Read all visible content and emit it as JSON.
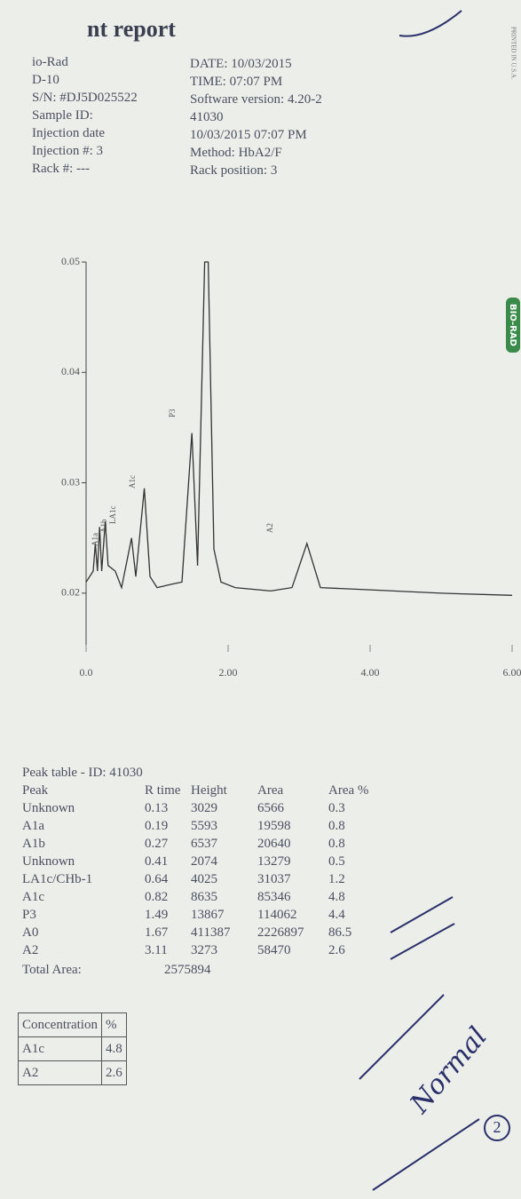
{
  "header": {
    "title": "nt report",
    "left": [
      "io-Rad",
      "D-10",
      "S/N: #DJ5D025522",
      "Sample ID:",
      "Injection date",
      "Injection #: 3",
      "Rack #: ---"
    ],
    "right": [
      "DATE: 10/03/2015",
      "TIME: 07:07 PM",
      "Software version: 4.20-2",
      "41030",
      "10/03/2015 07:07 PM",
      "Method: HbA2/F",
      "Rack position: 3"
    ]
  },
  "chart_data": {
    "type": "line",
    "color": "#333333",
    "x": [
      0.0,
      0.1,
      0.13,
      0.16,
      0.19,
      0.22,
      0.27,
      0.31,
      0.41,
      0.5,
      0.64,
      0.7,
      0.82,
      0.9,
      1.0,
      1.2,
      1.35,
      1.49,
      1.57,
      1.67,
      1.72,
      1.8,
      1.9,
      2.1,
      2.6,
      2.9,
      3.11,
      3.3,
      4.0,
      5.0,
      6.0
    ],
    "values": [
      0.021,
      0.022,
      0.0245,
      0.022,
      0.026,
      0.022,
      0.0265,
      0.0225,
      0.022,
      0.0205,
      0.025,
      0.0215,
      0.0295,
      0.0215,
      0.0205,
      0.0208,
      0.021,
      0.0345,
      0.0225,
      0.05,
      0.05,
      0.024,
      0.021,
      0.0205,
      0.0202,
      0.0205,
      0.0245,
      0.0205,
      0.0203,
      0.02,
      0.0198
    ],
    "xlim": [
      0,
      6
    ],
    "ylim": [
      0.015,
      0.05
    ],
    "xticks": [
      {
        "value": 0,
        "label": "0.0"
      },
      {
        "value": 2,
        "label": "2.00"
      },
      {
        "value": 4,
        "label": "4.00"
      },
      {
        "value": 6,
        "label": "6.00"
      }
    ],
    "yticks": [
      0.02,
      0.03,
      0.04,
      0.05
    ],
    "annotations": [
      "A1a",
      "A1b",
      "LA1c",
      "A1c",
      "P3",
      "A2"
    ]
  },
  "peak_table": {
    "title": "Peak table - ID: 41030",
    "columns": [
      "Peak",
      "R time",
      "Height",
      "Area",
      "Area %"
    ],
    "rows": [
      [
        "Unknown",
        "0.13",
        "3029",
        "6566",
        "0.3"
      ],
      [
        "A1a",
        "0.19",
        "5593",
        "19598",
        "0.8"
      ],
      [
        "A1b",
        "0.27",
        "6537",
        "20640",
        "0.8"
      ],
      [
        "Unknown",
        "0.41",
        "2074",
        "13279",
        "0.5"
      ],
      [
        "LA1c/CHb-1",
        "0.64",
        "4025",
        "31037",
        "1.2"
      ],
      [
        "A1c",
        "0.82",
        "8635",
        "85346",
        "4.8"
      ],
      [
        "P3",
        "1.49",
        "13867",
        "114062",
        "4.4"
      ],
      [
        "A0",
        "1.67",
        "411387",
        "2226897",
        "86.5"
      ],
      [
        "A2",
        "3.11",
        "3273",
        "58470",
        "2.6"
      ]
    ],
    "total_label": "Total Area:",
    "total_value": "2575894"
  },
  "concentration": {
    "header": [
      "Concentration",
      "%"
    ],
    "rows": [
      [
        "A1c",
        "4.8"
      ],
      [
        "A2",
        "2.6"
      ]
    ]
  },
  "handwriting": {
    "note": "Normal",
    "circle": "2"
  },
  "side": {
    "printed": "PRINTED IN U.S.A.",
    "logo": "BIO-RAD"
  }
}
